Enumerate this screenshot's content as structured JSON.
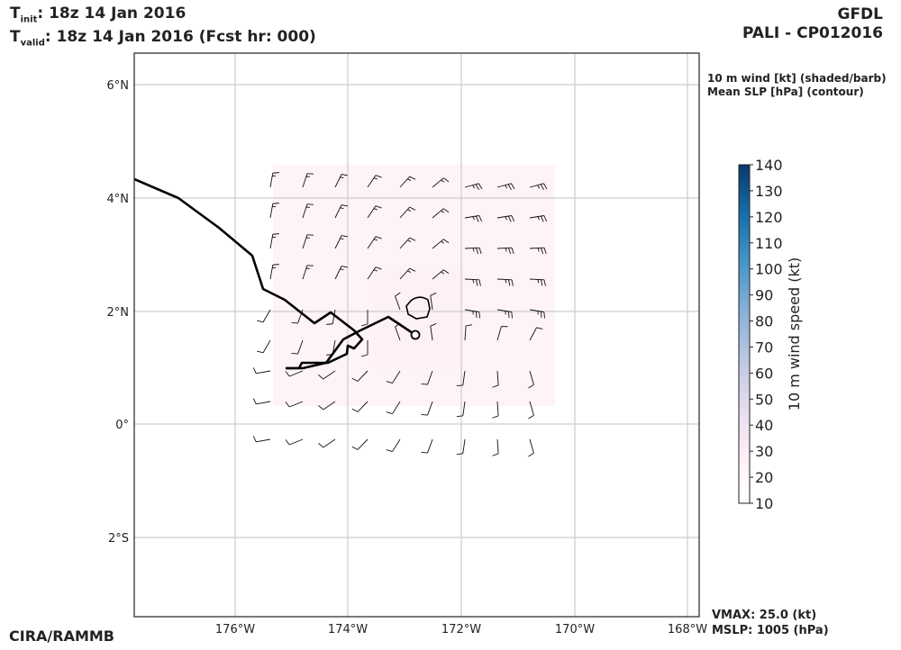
{
  "header": {
    "t_init_label": "init",
    "t_init_value": ":  18z 14 Jan 2016",
    "t_valid_label": "valid",
    "t_valid_value": ": 18z 14 Jan 2016 (Fcst hr: 000)",
    "model": "GFDL",
    "storm": "PALI - CP012016"
  },
  "legend": {
    "line1": "10 m wind [kt] (shaded/barb)",
    "line2": "Mean SLP [hPa] (contour)"
  },
  "colorbar": {
    "label": "10 m wind speed (kt)",
    "ticks": [
      "140",
      "130",
      "120",
      "110",
      "100",
      "90",
      "80",
      "70",
      "60",
      "50",
      "40",
      "30",
      "20",
      "10"
    ]
  },
  "map": {
    "lat_labels": [
      "6°N",
      "4°N",
      "2°N",
      "0°",
      "2°S"
    ],
    "lon_labels": [
      "176°W",
      "174°W",
      "172°W",
      "170°W",
      "168°W"
    ],
    "colors": {
      "track": "#000000",
      "grid": "#cccccc",
      "shade": "#fdf3f8"
    }
  },
  "footer": {
    "credit": "CIRA/RAMMB",
    "vmax": "VMAX:  25.0 (kt)",
    "mslp": "MSLP: 1005 (hPa)"
  }
}
